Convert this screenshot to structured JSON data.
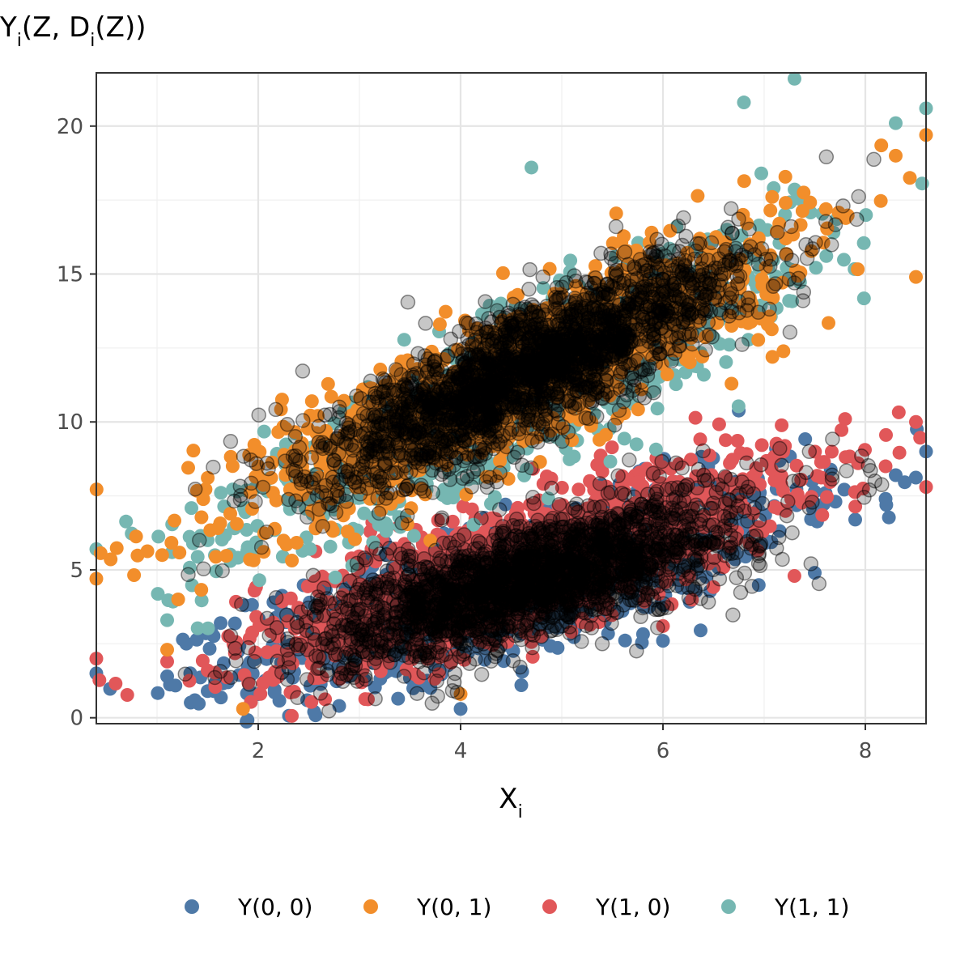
{
  "chart_data": {
    "type": "scatter",
    "title": "",
    "xlabel": "X",
    "xlabel_sub": "i",
    "ylabel": {
      "parts": [
        "Y",
        "i",
        "(Z, D",
        "i",
        "(Z))"
      ]
    },
    "xlim": [
      0.4,
      8.6
    ],
    "ylim": [
      -0.2,
      21.8
    ],
    "xticks": [
      2,
      4,
      6,
      8
    ],
    "yticks": [
      0,
      5,
      10,
      15,
      20
    ],
    "grid": true,
    "legend_position": "bottom",
    "overlay_color": "#000000",
    "overlay_description": "dark semi-transparent overlay on observed outcomes",
    "series": [
      {
        "name": "Y(0, 0)",
        "color": "#4E79A7",
        "model": {
          "intercept": 0.2,
          "slope": 0.95,
          "sd": 1.1
        },
        "points": [
          [
            0.4,
            1.5
          ],
          [
            1.1,
            1.4
          ],
          [
            1.5,
            0.9
          ],
          [
            1.7,
            1.2
          ],
          [
            2.0,
            0.8
          ],
          [
            2.8,
            0.4
          ],
          [
            4.0,
            0.3
          ],
          [
            4.6,
            1.1
          ],
          [
            6.0,
            2.6
          ],
          [
            7.5,
            4.9
          ],
          [
            7.9,
            6.7
          ],
          [
            8.2,
            7.4
          ],
          [
            8.6,
            9.0
          ],
          [
            8.3,
            8.2
          ]
        ]
      },
      {
        "name": "Y(0, 1)",
        "color": "#F28E2B",
        "model": {
          "intercept": 4.5,
          "slope": 1.55,
          "sd": 1.2
        },
        "points": [
          [
            0.4,
            4.7
          ],
          [
            1.1,
            2.3
          ],
          [
            1.85,
            0.3
          ],
          [
            2.0,
            8.5
          ],
          [
            4.0,
            0.8
          ],
          [
            8.6,
            19.7
          ],
          [
            8.3,
            19.0
          ],
          [
            8.5,
            14.9
          ]
        ]
      },
      {
        "name": "Y(1, 0)",
        "color": "#E15759",
        "model": {
          "intercept": 0.3,
          "slope": 1.05,
          "sd": 1.1
        },
        "points": [
          [
            0.4,
            2.0
          ],
          [
            1.1,
            1.9
          ],
          [
            1.5,
            1.6
          ],
          [
            8.5,
            10.0
          ],
          [
            8.2,
            8.5
          ],
          [
            8.6,
            7.8
          ],
          [
            7.8,
            10.1
          ],
          [
            6.0,
            3.1
          ]
        ]
      },
      {
        "name": "Y(1, 1)",
        "color": "#76B7B2",
        "model": {
          "intercept": 3.5,
          "slope": 1.65,
          "sd": 1.2
        },
        "points": [
          [
            0.4,
            5.7
          ],
          [
            1.1,
            3.3
          ],
          [
            1.5,
            6.0
          ],
          [
            7.3,
            21.6
          ],
          [
            8.6,
            20.6
          ],
          [
            8.3,
            20.1
          ],
          [
            4.7,
            18.6
          ],
          [
            6.8,
            20.8
          ]
        ]
      }
    ]
  }
}
